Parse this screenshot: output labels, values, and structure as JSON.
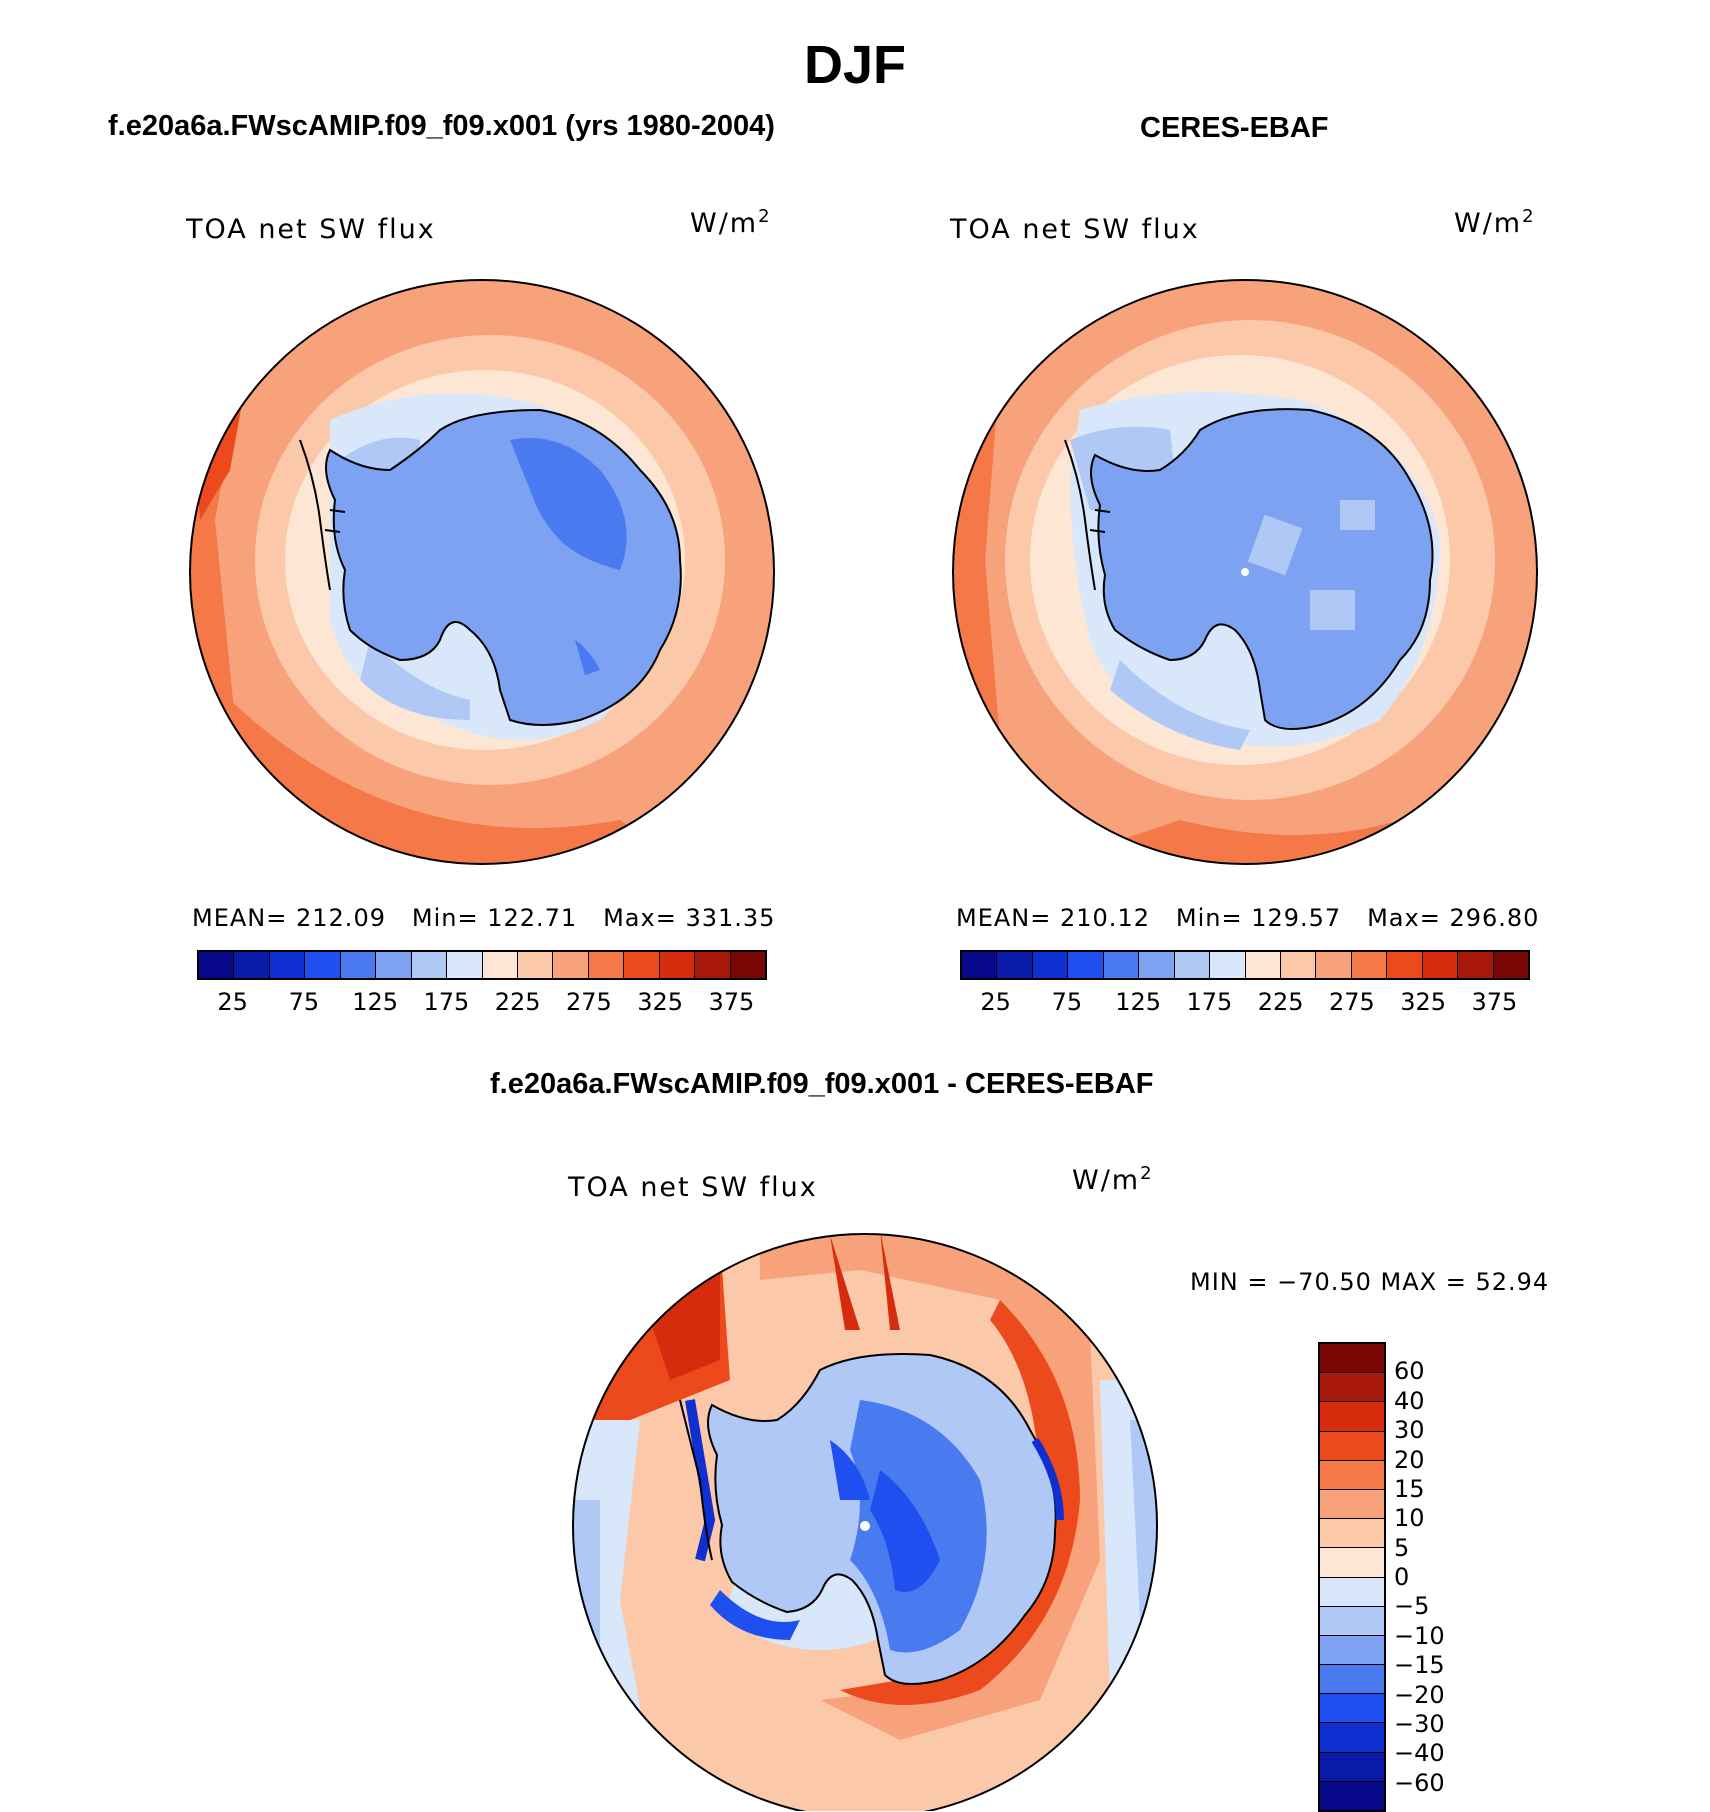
{
  "title": "DJF",
  "panels": {
    "model": {
      "heading": "f.e20a6a.FWscAMIP.f09_f09.x001 (yrs 1980-2004)",
      "variable": "TOA net SW flux",
      "units_base": "W/m",
      "units_exp": "2",
      "stats": {
        "mean_label": "MEAN=",
        "mean": "212.09",
        "min_label": "Min=",
        "min": "122.71",
        "max_label": "Max=",
        "max": "331.35"
      }
    },
    "obs": {
      "heading": "CERES-EBAF",
      "variable": "TOA net SW flux",
      "units_base": "W/m",
      "units_exp": "2",
      "stats": {
        "mean_label": "MEAN=",
        "mean": "210.12",
        "min_label": "Min=",
        "min": "129.57",
        "max_label": "Max=",
        "max": "296.80"
      }
    },
    "diff": {
      "heading": "f.e20a6a.FWscAMIP.f09_f09.x001 - CERES-EBAF",
      "variable": "TOA net SW flux",
      "units_base": "W/m",
      "units_exp": "2",
      "minmax": "MIN = −70.50 MAX =   52.94"
    }
  },
  "abs_colorbar": {
    "colors": [
      "#08088a",
      "#0a1aa8",
      "#0f2fd0",
      "#1f4fee",
      "#4a7af0",
      "#7ea2f2",
      "#b0c8f6",
      "#d8e8fa",
      "#fde6d4",
      "#fbc8aa",
      "#f8a27c",
      "#f47848",
      "#ec4a1c",
      "#d42c0c",
      "#a8180a",
      "#780604"
    ],
    "labels": [
      "25",
      "75",
      "125",
      "175",
      "225",
      "275",
      "325",
      "375"
    ]
  },
  "diff_colorbar": {
    "colors": [
      "#780604",
      "#a8180a",
      "#d42c0c",
      "#ec4a1c",
      "#f47848",
      "#f8a27c",
      "#fbc8aa",
      "#fde6d4",
      "#d8e8fa",
      "#b0c8f6",
      "#7ea2f2",
      "#4a7af0",
      "#1f4fee",
      "#0f2fd0",
      "#0a1aa8",
      "#08088a"
    ],
    "labels": [
      "60",
      "40",
      "30",
      "20",
      "15",
      "10",
      "5",
      "0",
      "−5",
      "−10",
      "−15",
      "−20",
      "−30",
      "−40",
      "−60"
    ]
  }
}
